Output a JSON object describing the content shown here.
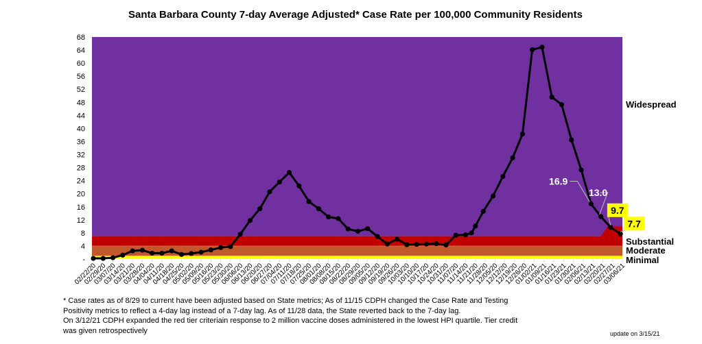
{
  "chart_data": {
    "type": "line",
    "title": "Santa Barbara County 7-day Average Adjusted* Case Rate per 100,000 Community Residents",
    "xlabel": "",
    "ylabel": "",
    "ylim": [
      0,
      68
    ],
    "yticks": [
      0,
      4,
      8,
      12,
      16,
      20,
      24,
      28,
      32,
      36,
      40,
      44,
      48,
      52,
      56,
      60,
      64,
      68
    ],
    "ytick_labels": [
      "-",
      "4",
      "8",
      "12",
      "16",
      "20",
      "24",
      "28",
      "32",
      "36",
      "40",
      "44",
      "48",
      "52",
      "56",
      "60",
      "64",
      "68"
    ],
    "grid": false,
    "categories": [
      "02/22/20",
      "02/29/20",
      "03/07/20",
      "03/14/20",
      "03/21/20",
      "03/28/20",
      "04/04/20",
      "04/11/20",
      "04/18/20",
      "04/25/20",
      "05/02/20",
      "05/09/20",
      "05/16/20",
      "05/23/20",
      "05/30/20",
      "06/06/20",
      "06/13/20",
      "06/20/20",
      "06/27/20",
      "07/04/20",
      "07/11/20",
      "07/18/20",
      "07/25/20",
      "08/01/20",
      "08/08/20",
      "08/15/20",
      "08/22/20",
      "08/29/20",
      "09/05/20",
      "09/12/20",
      "09/19/20",
      "09/26/20",
      "10/03/20",
      "10/10/20",
      "10/17/20",
      "10/24/20",
      "10/31/20",
      "11/07/20",
      "11/14/20",
      "11/21/20",
      "11/28/20",
      "12/05/20",
      "12/12/20",
      "12/19/20",
      "12/26/20",
      "01/02/21",
      "01/09/21",
      "01/16/21",
      "01/23/21",
      "01/30/21",
      "02/06/21",
      "02/13/21",
      "02/20/21",
      "02/27/21",
      "03/06/21"
    ],
    "series": [
      {
        "name": "7-day Average Adjusted Case Rate",
        "color": "#000000",
        "points": [
          {
            "x": 0,
            "y": 0.2
          },
          {
            "x": 1,
            "y": 0.2
          },
          {
            "x": 2,
            "y": 0.4
          },
          {
            "x": 3,
            "y": 1.2
          },
          {
            "x": 4,
            "y": 2.5
          },
          {
            "x": 5,
            "y": 2.7
          },
          {
            "x": 6,
            "y": 1.8
          },
          {
            "x": 7,
            "y": 1.8
          },
          {
            "x": 8,
            "y": 2.5
          },
          {
            "x": 9,
            "y": 1.4
          },
          {
            "x": 10,
            "y": 1.7
          },
          {
            "x": 11,
            "y": 2.1
          },
          {
            "x": 12,
            "y": 2.8
          },
          {
            "x": 13,
            "y": 3.5
          },
          {
            "x": 14,
            "y": 3.8
          },
          {
            "x": 15,
            "y": 7.6
          },
          {
            "x": 16,
            "y": 11.8
          },
          {
            "x": 17,
            "y": 15.4
          },
          {
            "x": 18,
            "y": 20.6
          },
          {
            "x": 19,
            "y": 23.6
          },
          {
            "x": 20,
            "y": 26.5
          },
          {
            "x": 21,
            "y": 22.4
          },
          {
            "x": 22,
            "y": 17.6
          },
          {
            "x": 23,
            "y": 15.4
          },
          {
            "x": 24,
            "y": 12.9
          },
          {
            "x": 25,
            "y": 12.4
          },
          {
            "x": 26,
            "y": 9.2
          },
          {
            "x": 27,
            "y": 8.5
          },
          {
            "x": 28,
            "y": 9.3
          },
          {
            "x": 29,
            "y": 6.9
          },
          {
            "x": 30,
            "y": 4.6
          },
          {
            "x": 31,
            "y": 6.1
          },
          {
            "x": 32,
            "y": 4.4
          },
          {
            "x": 33,
            "y": 4.5
          },
          {
            "x": 34,
            "y": 4.6
          },
          {
            "x": 35,
            "y": 4.7
          },
          {
            "x": 36,
            "y": 4.3
          },
          {
            "x": 37,
            "y": 7.3
          },
          {
            "x": 38,
            "y": 7.4
          },
          {
            "x": 38.6,
            "y": 8.0
          },
          {
            "x": 39,
            "y": 10.1
          },
          {
            "x": 39.8,
            "y": 14.6
          },
          {
            "x": 40.8,
            "y": 19.3
          },
          {
            "x": 41.8,
            "y": 25.3
          },
          {
            "x": 42.8,
            "y": 31.0
          },
          {
            "x": 43.8,
            "y": 38.3
          },
          {
            "x": 44.8,
            "y": 64.1
          },
          {
            "x": 45.8,
            "y": 64.9
          },
          {
            "x": 46.8,
            "y": 49.6
          },
          {
            "x": 47.8,
            "y": 47.3
          },
          {
            "x": 48.8,
            "y": 36.5
          },
          {
            "x": 49.8,
            "y": 27.3
          },
          {
            "x": 50.8,
            "y": 16.9
          },
          {
            "x": 51.8,
            "y": 13.0
          },
          {
            "x": 52.8,
            "y": 9.7
          },
          {
            "x": 53.8,
            "y": 7.7
          }
        ]
      }
    ],
    "tier_bands": [
      {
        "name": "Widespread",
        "from": 7,
        "to": 68,
        "color": "#7030a0"
      },
      {
        "name": "Substantial",
        "from": 4,
        "to": 7,
        "color": "#c00000",
        "expanded_to": 10,
        "expanded_from_x": 51.8
      },
      {
        "name": "Moderate",
        "from": 1,
        "to": 4,
        "color": "#c0582c"
      },
      {
        "name": "Minimal",
        "from": 0,
        "to": 1,
        "color": "#ffff00"
      }
    ],
    "annotations": [
      {
        "text": "16.9",
        "x": 50.8,
        "y": 16.9,
        "style": "white"
      },
      {
        "text": "13.0",
        "x": 51.8,
        "y": 13.0,
        "style": "white"
      },
      {
        "text": "9.7",
        "x": 52.8,
        "y": 9.7,
        "style": "yellow"
      },
      {
        "text": "7.7",
        "x": 53.8,
        "y": 7.7,
        "style": "yellow"
      }
    ],
    "footnote": [
      "* Case rates as of 8/29 to current have been adjusted based on State metrics; As of 11/15 CDPH changed the Case Rate and Testing",
      "Positivity metrics to reflect a 4-day lag instead of a 7-day lag. As of 11/28 data, the State reverted back to the 7-day lag.",
      "On 3/12/21 CDPH expanded the red tier criteriain response to 2 million vaccine doses administered in the lowest HPI quartile. Tier credit",
      "was given retrospectively"
    ],
    "update_note": "update on 3/15/21"
  }
}
